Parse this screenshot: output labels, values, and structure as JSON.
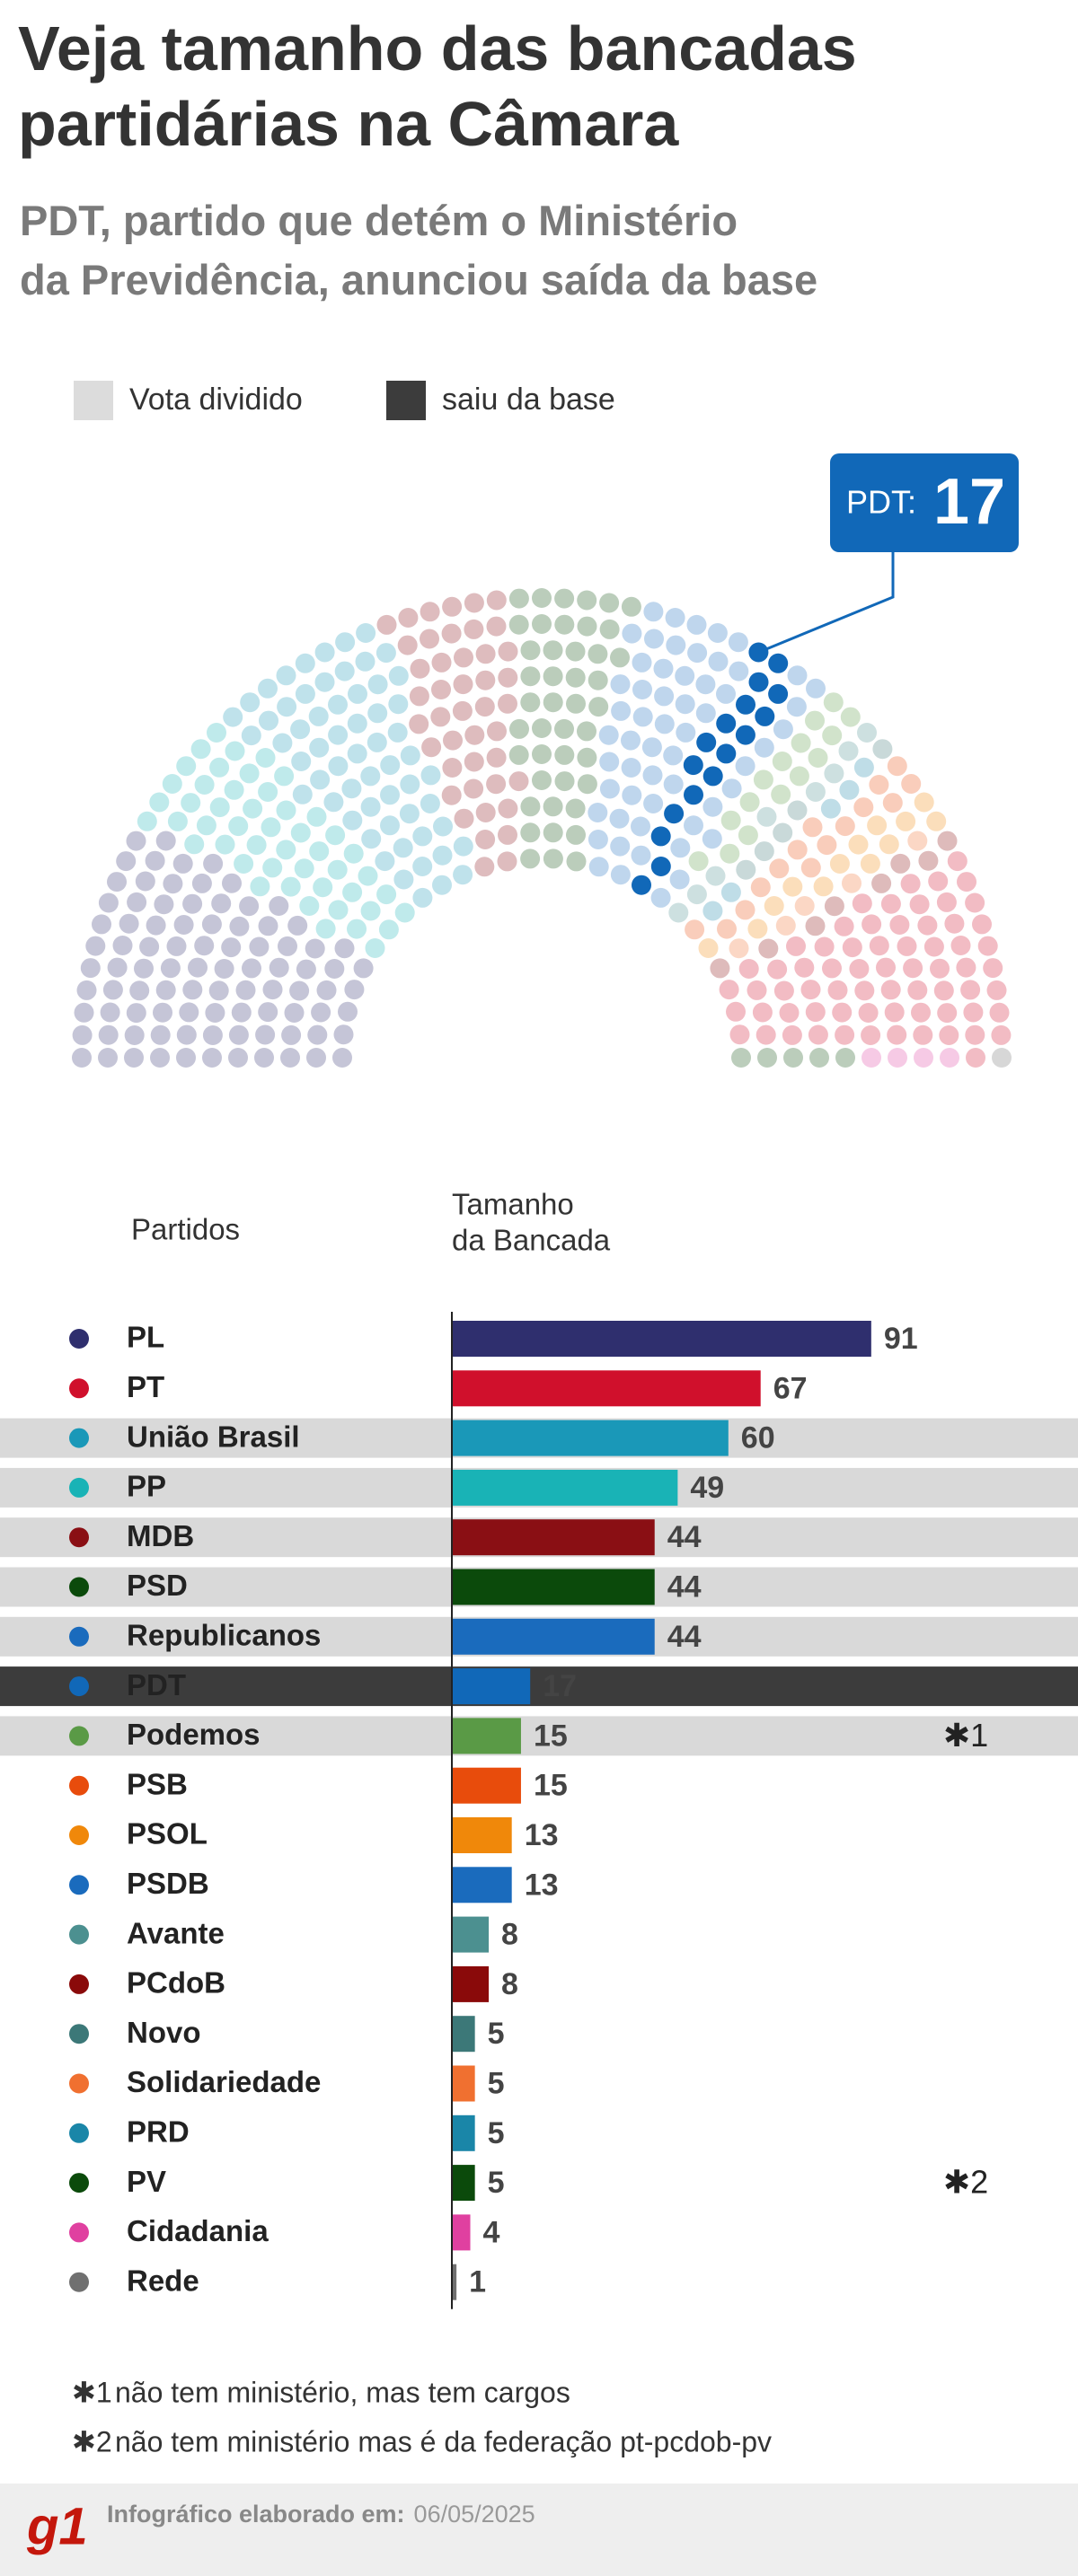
{
  "chart_data": {
    "type": "bar",
    "title": [
      "Veja tamanho das bancadas",
      "partidárias na Câmara"
    ],
    "subtitle": [
      "PDT, partido que detém o Ministério",
      "da Previdência, anunciou saída da base"
    ],
    "legend": [
      {
        "label": "Vota dividido",
        "color": "#dcdcdc"
      },
      {
        "label": "saiu da base",
        "color": "#3c3c3c"
      }
    ],
    "callout": {
      "label": "PDT:",
      "value": 17
    },
    "headers": {
      "categories": "Partidos",
      "values": [
        "Tamanho",
        "da Bancada"
      ]
    },
    "categories": [
      "PL",
      "PT",
      "União Brasil",
      "PP",
      "MDB",
      "PSD",
      "Republicanos",
      "PDT",
      "Podemos",
      "PSB",
      "PSOL",
      "PSDB",
      "Avante",
      "PCdoB",
      "Novo",
      "Solidariedade",
      "PRD",
      "PV",
      "Cidadania",
      "Rede"
    ],
    "values": [
      91,
      67,
      60,
      49,
      44,
      44,
      44,
      17,
      15,
      15,
      13,
      13,
      8,
      8,
      5,
      5,
      5,
      5,
      4,
      1
    ],
    "colors": [
      "#2f2f6e",
      "#d0102c",
      "#1a98b8",
      "#19b3b6",
      "#8a0f14",
      "#0b4a0b",
      "#1a6bbd",
      "#1168b8",
      "#5a9a46",
      "#e84c0c",
      "#f0880a",
      "#1a6bbd",
      "#4c9090",
      "#8a0a0a",
      "#3c7878",
      "#f07030",
      "#1a86a8",
      "#0b4a0b",
      "#e040a0",
      "#707070"
    ],
    "divided": [
      false,
      false,
      true,
      true,
      true,
      true,
      true,
      false,
      true,
      false,
      false,
      false,
      false,
      false,
      false,
      false,
      false,
      false,
      false,
      false
    ],
    "left_base": [
      false,
      false,
      false,
      false,
      false,
      false,
      false,
      true,
      false,
      false,
      false,
      false,
      false,
      false,
      false,
      false,
      false,
      false,
      false,
      false
    ],
    "row_notes": [
      null,
      null,
      null,
      null,
      null,
      null,
      null,
      null,
      "✱1",
      null,
      null,
      null,
      null,
      null,
      null,
      null,
      null,
      "✱2",
      null,
      null
    ],
    "notes": [
      {
        "marker": "✱1",
        "text": "não tem ministério, mas tem cargos"
      },
      {
        "marker": "✱2",
        "text": "não tem ministério mas é da federação pt-pcdob-pv"
      }
    ],
    "footer": {
      "logo": "g1",
      "label": "Infográfico elaborado em:",
      "date": "06/05/2025"
    }
  }
}
